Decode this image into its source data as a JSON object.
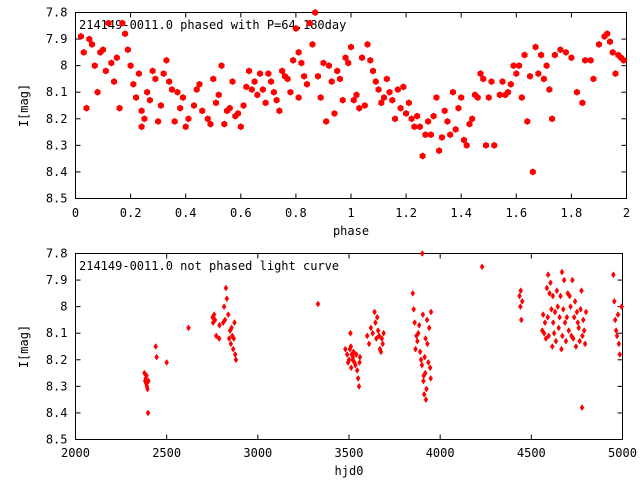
{
  "chart_data": [
    {
      "type": "scatter",
      "title": "214149-0011.0 phased with P=64.180day",
      "xlabel": "phase",
      "ylabel": "I[mag]",
      "xlim": [
        0,
        2
      ],
      "ylim": [
        8.5,
        7.8
      ],
      "y_inverted": true,
      "grid": false,
      "marker": "filled-hexagon",
      "color": "#ff0000",
      "xticks": [
        "0",
        "0.2",
        "0.4",
        "0.6",
        "0.8",
        "1",
        "1.2",
        "1.4",
        "1.6",
        "1.8",
        "2"
      ],
      "yticks": [
        "7.8",
        "7.9",
        "8",
        "8.1",
        "8.2",
        "8.3",
        "8.4",
        "8.5"
      ],
      "points": [
        [
          0.02,
          7.89
        ],
        [
          0.03,
          7.95
        ],
        [
          0.04,
          8.16
        ],
        [
          0.05,
          7.9
        ],
        [
          0.06,
          7.92
        ],
        [
          0.07,
          8.0
        ],
        [
          0.08,
          8.1
        ],
        [
          0.09,
          7.95
        ],
        [
          0.1,
          7.94
        ],
        [
          0.11,
          8.02
        ],
        [
          0.12,
          7.84
        ],
        [
          0.13,
          7.99
        ],
        [
          0.14,
          8.06
        ],
        [
          0.15,
          7.97
        ],
        [
          0.16,
          8.16
        ],
        [
          0.17,
          7.84
        ],
        [
          0.18,
          7.88
        ],
        [
          0.19,
          7.94
        ],
        [
          0.2,
          8.0
        ],
        [
          0.21,
          8.07
        ],
        [
          0.22,
          8.12
        ],
        [
          0.23,
          8.03
        ],
        [
          0.24,
          8.17
        ],
        [
          0.24,
          8.23
        ],
        [
          0.25,
          8.2
        ],
        [
          0.26,
          8.1
        ],
        [
          0.27,
          8.13
        ],
        [
          0.28,
          8.02
        ],
        [
          0.29,
          8.05
        ],
        [
          0.3,
          8.21
        ],
        [
          0.31,
          8.15
        ],
        [
          0.32,
          8.03
        ],
        [
          0.33,
          7.98
        ],
        [
          0.34,
          8.06
        ],
        [
          0.35,
          8.09
        ],
        [
          0.36,
          8.21
        ],
        [
          0.37,
          8.1
        ],
        [
          0.38,
          8.16
        ],
        [
          0.39,
          8.12
        ],
        [
          0.4,
          8.23
        ],
        [
          0.41,
          8.2
        ],
        [
          0.43,
          8.15
        ],
        [
          0.44,
          8.09
        ],
        [
          0.45,
          8.07
        ],
        [
          0.46,
          8.17
        ],
        [
          0.48,
          8.2
        ],
        [
          0.49,
          8.22
        ],
        [
          0.5,
          8.05
        ],
        [
          0.51,
          8.14
        ],
        [
          0.52,
          8.11
        ],
        [
          0.53,
          8.0
        ],
        [
          0.54,
          8.22
        ],
        [
          0.55,
          8.17
        ],
        [
          0.56,
          8.16
        ],
        [
          0.57,
          8.06
        ],
        [
          0.58,
          8.19
        ],
        [
          0.59,
          8.18
        ],
        [
          0.6,
          8.23
        ],
        [
          0.61,
          8.15
        ],
        [
          0.62,
          8.08
        ],
        [
          0.63,
          8.02
        ],
        [
          0.64,
          8.09
        ],
        [
          0.65,
          8.06
        ],
        [
          0.66,
          8.11
        ],
        [
          0.67,
          8.03
        ],
        [
          0.68,
          8.09
        ],
        [
          0.69,
          8.14
        ],
        [
          0.7,
          8.03
        ],
        [
          0.71,
          8.06
        ],
        [
          0.72,
          8.1
        ],
        [
          0.73,
          8.13
        ],
        [
          0.74,
          8.17
        ],
        [
          0.75,
          8.02
        ],
        [
          0.76,
          8.04
        ],
        [
          0.77,
          8.05
        ],
        [
          0.78,
          8.1
        ],
        [
          0.79,
          7.98
        ],
        [
          0.8,
          7.86
        ],
        [
          0.81,
          8.12
        ],
        [
          0.81,
          7.95
        ],
        [
          0.82,
          7.99
        ],
        [
          0.83,
          8.04
        ],
        [
          0.84,
          8.07
        ],
        [
          0.85,
          7.84
        ],
        [
          0.86,
          7.92
        ],
        [
          0.87,
          7.8
        ],
        [
          0.88,
          8.04
        ],
        [
          0.89,
          8.12
        ],
        [
          0.9,
          7.99
        ],
        [
          0.91,
          8.21
        ],
        [
          0.92,
          8.0
        ],
        [
          0.93,
          8.06
        ],
        [
          0.94,
          8.18
        ],
        [
          0.95,
          8.02
        ],
        [
          0.96,
          8.05
        ],
        [
          0.97,
          8.13
        ],
        [
          0.98,
          7.97
        ],
        [
          0.99,
          7.99
        ],
        [
          1.0,
          7.93
        ],
        [
          1.01,
          8.13
        ],
        [
          1.02,
          8.11
        ],
        [
          1.03,
          8.16
        ],
        [
          1.04,
          7.97
        ],
        [
          1.05,
          8.15
        ],
        [
          1.06,
          7.92
        ],
        [
          1.07,
          7.98
        ],
        [
          1.08,
          8.02
        ],
        [
          1.09,
          8.06
        ],
        [
          1.1,
          8.09
        ],
        [
          1.11,
          8.14
        ],
        [
          1.12,
          8.12
        ],
        [
          1.13,
          8.05
        ],
        [
          1.14,
          8.1
        ],
        [
          1.15,
          8.13
        ],
        [
          1.16,
          8.2
        ],
        [
          1.17,
          8.09
        ],
        [
          1.18,
          8.16
        ],
        [
          1.19,
          8.08
        ],
        [
          1.2,
          8.18
        ],
        [
          1.21,
          8.14
        ],
        [
          1.22,
          8.2
        ],
        [
          1.23,
          8.23
        ],
        [
          1.24,
          8.19
        ],
        [
          1.25,
          8.23
        ],
        [
          1.26,
          8.34
        ],
        [
          1.27,
          8.26
        ],
        [
          1.28,
          8.21
        ],
        [
          1.29,
          8.26
        ],
        [
          1.3,
          8.19
        ],
        [
          1.31,
          8.12
        ],
        [
          1.32,
          8.32
        ],
        [
          1.33,
          8.27
        ],
        [
          1.34,
          8.17
        ],
        [
          1.35,
          8.21
        ],
        [
          1.36,
          8.26
        ],
        [
          1.37,
          8.1
        ],
        [
          1.38,
          8.24
        ],
        [
          1.39,
          8.16
        ],
        [
          1.4,
          8.12
        ],
        [
          1.41,
          8.28
        ],
        [
          1.42,
          8.3
        ],
        [
          1.43,
          8.22
        ],
        [
          1.44,
          8.2
        ],
        [
          1.45,
          8.11
        ],
        [
          1.46,
          8.12
        ],
        [
          1.47,
          8.03
        ],
        [
          1.48,
          8.05
        ],
        [
          1.49,
          8.3
        ],
        [
          1.5,
          8.12
        ],
        [
          1.51,
          8.06
        ],
        [
          1.52,
          8.3
        ],
        [
          1.54,
          8.11
        ],
        [
          1.55,
          8.06
        ],
        [
          1.56,
          8.11
        ],
        [
          1.57,
          8.1
        ],
        [
          1.58,
          8.07
        ],
        [
          1.59,
          8.0
        ],
        [
          1.6,
          8.03
        ],
        [
          1.61,
          8.0
        ],
        [
          1.62,
          8.12
        ],
        [
          1.63,
          7.96
        ],
        [
          1.64,
          8.21
        ],
        [
          1.65,
          8.04
        ],
        [
          1.66,
          8.4
        ],
        [
          1.67,
          7.93
        ],
        [
          1.68,
          8.03
        ],
        [
          1.69,
          7.96
        ],
        [
          1.7,
          8.05
        ],
        [
          1.71,
          8.0
        ],
        [
          1.72,
          8.09
        ],
        [
          1.73,
          8.2
        ],
        [
          1.74,
          7.96
        ],
        [
          1.76,
          7.94
        ],
        [
          1.78,
          7.95
        ],
        [
          1.8,
          7.97
        ],
        [
          1.82,
          8.1
        ],
        [
          1.84,
          8.14
        ],
        [
          1.85,
          7.98
        ],
        [
          1.87,
          7.98
        ],
        [
          1.88,
          8.05
        ],
        [
          1.9,
          7.92
        ],
        [
          1.92,
          7.89
        ],
        [
          1.93,
          7.88
        ],
        [
          1.94,
          7.91
        ],
        [
          1.95,
          7.95
        ],
        [
          1.96,
          8.03
        ],
        [
          1.97,
          7.96
        ],
        [
          1.98,
          7.97
        ],
        [
          1.99,
          7.98
        ]
      ]
    },
    {
      "type": "scatter",
      "title": "214149-0011.0 not phased light curve",
      "xlabel": "hjd0",
      "ylabel": "I[mag]",
      "xlim": [
        2000,
        5000
      ],
      "ylim": [
        8.5,
        7.8
      ],
      "y_inverted": true,
      "grid": false,
      "marker": "filled-diamond",
      "color": "#ff0000",
      "xticks": [
        "2000",
        "2500",
        "3000",
        "3500",
        "4000",
        "4500",
        "5000"
      ],
      "yticks": [
        "7.8",
        "7.9",
        "8",
        "8.1",
        "8.2",
        "8.3",
        "8.4",
        "8.5"
      ],
      "points": [
        [
          2378,
          8.25
        ],
        [
          2382,
          8.28
        ],
        [
          2385,
          8.27
        ],
        [
          2388,
          8.29
        ],
        [
          2390,
          8.26
        ],
        [
          2392,
          8.3
        ],
        [
          2395,
          8.31
        ],
        [
          2398,
          8.4
        ],
        [
          2400,
          8.28
        ],
        [
          2440,
          8.15
        ],
        [
          2445,
          8.19
        ],
        [
          2500,
          8.21
        ],
        [
          2620,
          8.08
        ],
        [
          2752,
          8.04
        ],
        [
          2755,
          8.06
        ],
        [
          2760,
          8.03
        ],
        [
          2765,
          8.05
        ],
        [
          2772,
          8.11
        ],
        [
          2788,
          8.12
        ],
        [
          2790,
          8.07
        ],
        [
          2810,
          8.06
        ],
        [
          2815,
          8.0
        ],
        [
          2820,
          8.05
        ],
        [
          2825,
          7.93
        ],
        [
          2830,
          7.97
        ],
        [
          2838,
          8.03
        ],
        [
          2843,
          8.12
        ],
        [
          2848,
          8.09
        ],
        [
          2852,
          8.14
        ],
        [
          2856,
          8.08
        ],
        [
          2860,
          8.11
        ],
        [
          2865,
          8.16
        ],
        [
          2868,
          8.12
        ],
        [
          2872,
          8.06
        ],
        [
          2876,
          8.18
        ],
        [
          2880,
          8.2
        ],
        [
          3330,
          7.99
        ],
        [
          3480,
          8.16
        ],
        [
          3490,
          8.18
        ],
        [
          3495,
          8.21
        ],
        [
          3500,
          8.2
        ],
        [
          3505,
          8.16
        ],
        [
          3508,
          8.1
        ],
        [
          3510,
          8.15
        ],
        [
          3512,
          8.23
        ],
        [
          3515,
          8.18
        ],
        [
          3520,
          8.2
        ],
        [
          3522,
          8.19
        ],
        [
          3525,
          8.17
        ],
        [
          3530,
          8.21
        ],
        [
          3535,
          8.22
        ],
        [
          3540,
          8.18
        ],
        [
          3545,
          8.24
        ],
        [
          3550,
          8.27
        ],
        [
          3555,
          8.3
        ],
        [
          3558,
          8.21
        ],
        [
          3560,
          8.19
        ],
        [
          3600,
          8.11
        ],
        [
          3610,
          8.14
        ],
        [
          3620,
          8.08
        ],
        [
          3630,
          8.1
        ],
        [
          3640,
          8.02
        ],
        [
          3645,
          8.06
        ],
        [
          3650,
          8.12
        ],
        [
          3655,
          8.04
        ],
        [
          3660,
          8.09
        ],
        [
          3665,
          8.11
        ],
        [
          3670,
          8.16
        ],
        [
          3675,
          8.17
        ],
        [
          3680,
          8.12
        ],
        [
          3685,
          8.14
        ],
        [
          3690,
          8.1
        ],
        [
          3850,
          7.95
        ],
        [
          3855,
          8.01
        ],
        [
          3860,
          8.06
        ],
        [
          3865,
          8.16
        ],
        [
          3870,
          8.11
        ],
        [
          3875,
          8.13
        ],
        [
          3880,
          8.1
        ],
        [
          3885,
          8.07
        ],
        [
          3890,
          8.17
        ],
        [
          3895,
          8.2
        ],
        [
          3900,
          8.22
        ],
        [
          3902,
          7.8
        ],
        [
          3905,
          8.03
        ],
        [
          3908,
          8.28
        ],
        [
          3910,
          8.26
        ],
        [
          3912,
          8.33
        ],
        [
          3915,
          8.19
        ],
        [
          3918,
          8.25
        ],
        [
          3920,
          8.12
        ],
        [
          3922,
          8.35
        ],
        [
          3925,
          8.31
        ],
        [
          3928,
          8.05
        ],
        [
          3930,
          8.14
        ],
        [
          3935,
          8.21
        ],
        [
          3940,
          8.08
        ],
        [
          3945,
          8.23
        ],
        [
          3948,
          8.27
        ],
        [
          3950,
          8.02
        ],
        [
          4230,
          7.85
        ],
        [
          4435,
          7.96
        ],
        [
          4440,
          8.0
        ],
        [
          4442,
          7.94
        ],
        [
          4445,
          8.05
        ],
        [
          4450,
          7.98
        ],
        [
          4560,
          8.09
        ],
        [
          4565,
          8.03
        ],
        [
          4570,
          8.1
        ],
        [
          4575,
          8.06
        ],
        [
          4580,
          8.12
        ],
        [
          4585,
          7.93
        ],
        [
          4590,
          8.04
        ],
        [
          4592,
          7.88
        ],
        [
          4595,
          8.11
        ],
        [
          4600,
          7.95
        ],
        [
          4605,
          7.91
        ],
        [
          4610,
          8.01
        ],
        [
          4615,
          8.15
        ],
        [
          4618,
          7.96
        ],
        [
          4620,
          8.06
        ],
        [
          4625,
          8.1
        ],
        [
          4630,
          8.02
        ],
        [
          4635,
          8.13
        ],
        [
          4640,
          7.94
        ],
        [
          4645,
          8.0
        ],
        [
          4650,
          8.08
        ],
        [
          4655,
          8.04
        ],
        [
          4660,
          7.96
        ],
        [
          4665,
          8.16
        ],
        [
          4668,
          7.87
        ],
        [
          4670,
          8.11
        ],
        [
          4675,
          8.01
        ],
        [
          4680,
          7.9
        ],
        [
          4685,
          8.06
        ],
        [
          4690,
          8.13
        ],
        [
          4695,
          8.04
        ],
        [
          4700,
          7.95
        ],
        [
          4705,
          8.09
        ],
        [
          4710,
          7.96
        ],
        [
          4715,
          8.0
        ],
        [
          4720,
          8.11
        ],
        [
          4725,
          7.9
        ],
        [
          4730,
          8.12
        ],
        [
          4735,
          8.04
        ],
        [
          4740,
          7.98
        ],
        [
          4745,
          8.15
        ],
        [
          4750,
          8.02
        ],
        [
          4755,
          8.06
        ],
        [
          4760,
          8.08
        ],
        [
          4765,
          8.13
        ],
        [
          4770,
          8.01
        ],
        [
          4775,
          7.94
        ],
        [
          4778,
          8.38
        ],
        [
          4780,
          8.11
        ],
        [
          4785,
          8.05
        ],
        [
          4790,
          8.09
        ],
        [
          4795,
          8.14
        ],
        [
          4800,
          8.02
        ],
        [
          4950,
          7.88
        ],
        [
          4955,
          7.98
        ],
        [
          4960,
          8.05
        ],
        [
          4965,
          8.09
        ],
        [
          4970,
          8.11
        ],
        [
          4975,
          8.03
        ],
        [
          4980,
          8.14
        ],
        [
          4985,
          8.18
        ],
        [
          4995,
          8.0
        ]
      ]
    }
  ]
}
